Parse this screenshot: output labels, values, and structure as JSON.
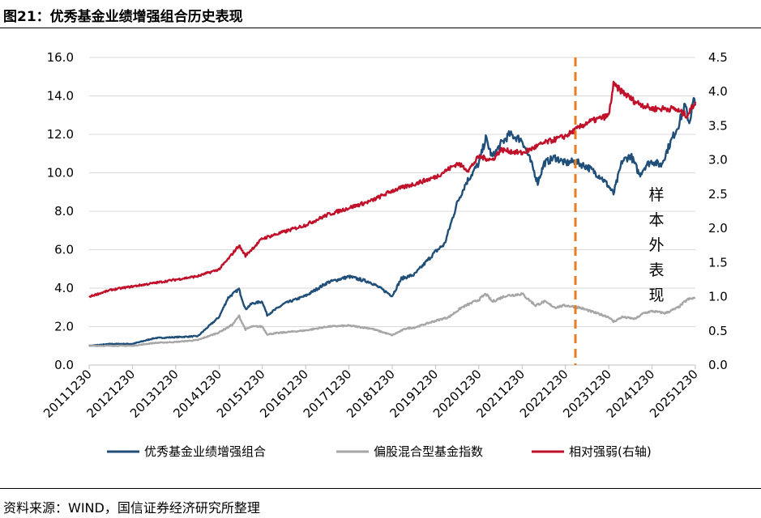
{
  "title": "图21：优秀基金业绩增强组合历史表现",
  "source": "资料来源：WIND，国信证券经济研究所整理",
  "chart_data": {
    "type": "line",
    "x_ticks": [
      "20111230",
      "20121230",
      "20131230",
      "20141230",
      "20151230",
      "20161230",
      "20171230",
      "20181230",
      "20191230",
      "20201230",
      "20211230",
      "20221230",
      "20231230",
      "20241230",
      "20251230"
    ],
    "ylim_left": [
      0,
      16
    ],
    "ylim_right": [
      0,
      4.5
    ],
    "left_ticks": [
      "0.0",
      "2.0",
      "4.0",
      "6.0",
      "8.0",
      "10.0",
      "12.0",
      "14.0",
      "16.0"
    ],
    "right_ticks": [
      "0.0",
      "0.5",
      "1.0",
      "1.5",
      "2.0",
      "2.5",
      "3.0",
      "3.5",
      "4.0",
      "4.5"
    ],
    "grid": "horizontal",
    "legend_position": "bottom",
    "divider_x": "2023-03",
    "annotation": "样本外表现",
    "series": [
      {
        "name": "优秀基金业绩增强组合",
        "axis": "left",
        "color": "#1f4e79",
        "points": [
          [
            2011.99,
            1.0
          ],
          [
            2012.5,
            1.1
          ],
          [
            2012.99,
            1.1
          ],
          [
            2013.5,
            1.4
          ],
          [
            2013.99,
            1.45
          ],
          [
            2014.5,
            1.5
          ],
          [
            2014.99,
            2.5
          ],
          [
            2015.2,
            3.5
          ],
          [
            2015.45,
            3.95
          ],
          [
            2015.6,
            2.9
          ],
          [
            2015.75,
            3.2
          ],
          [
            2015.99,
            3.3
          ],
          [
            2016.1,
            2.6
          ],
          [
            2016.5,
            3.2
          ],
          [
            2016.99,
            3.6
          ],
          [
            2017.5,
            4.3
          ],
          [
            2017.99,
            4.6
          ],
          [
            2018.5,
            4.3
          ],
          [
            2018.99,
            3.6
          ],
          [
            2019.2,
            4.5
          ],
          [
            2019.5,
            4.7
          ],
          [
            2019.99,
            5.9
          ],
          [
            2020.2,
            6.3
          ],
          [
            2020.5,
            8.5
          ],
          [
            2020.7,
            9.5
          ],
          [
            2020.99,
            10.5
          ],
          [
            2021.15,
            11.8
          ],
          [
            2021.3,
            10.8
          ],
          [
            2021.5,
            11.5
          ],
          [
            2021.7,
            12.0
          ],
          [
            2021.99,
            11.7
          ],
          [
            2022.2,
            10.5
          ],
          [
            2022.35,
            9.5
          ],
          [
            2022.5,
            10.5
          ],
          [
            2022.75,
            10.8
          ],
          [
            2022.99,
            10.5
          ],
          [
            2023.2,
            10.6
          ],
          [
            2023.5,
            10.3
          ],
          [
            2023.8,
            9.8
          ],
          [
            2023.99,
            9.3
          ],
          [
            2024.1,
            8.9
          ],
          [
            2024.3,
            10.6
          ],
          [
            2024.5,
            10.9
          ],
          [
            2024.7,
            9.9
          ],
          [
            2024.85,
            10.4
          ],
          [
            2024.99,
            10.6
          ],
          [
            2025.2,
            10.4
          ],
          [
            2025.4,
            11.5
          ],
          [
            2025.6,
            12.5
          ],
          [
            2025.75,
            13.5
          ],
          [
            2025.85,
            12.6
          ],
          [
            2025.95,
            13.8
          ],
          [
            2025.99,
            13.5
          ]
        ]
      },
      {
        "name": "偏股混合型基金指数",
        "axis": "left",
        "color": "#a6a6a6",
        "points": [
          [
            2011.99,
            1.0
          ],
          [
            2012.5,
            1.0
          ],
          [
            2012.99,
            1.0
          ],
          [
            2013.5,
            1.15
          ],
          [
            2013.99,
            1.2
          ],
          [
            2014.5,
            1.3
          ],
          [
            2014.99,
            1.7
          ],
          [
            2015.3,
            2.1
          ],
          [
            2015.45,
            2.55
          ],
          [
            2015.6,
            1.85
          ],
          [
            2015.75,
            2.0
          ],
          [
            2015.99,
            2.0
          ],
          [
            2016.1,
            1.6
          ],
          [
            2016.5,
            1.7
          ],
          [
            2016.99,
            1.8
          ],
          [
            2017.5,
            2.0
          ],
          [
            2017.99,
            2.05
          ],
          [
            2018.5,
            1.9
          ],
          [
            2018.99,
            1.55
          ],
          [
            2019.3,
            1.9
          ],
          [
            2019.5,
            1.95
          ],
          [
            2019.99,
            2.3
          ],
          [
            2020.3,
            2.5
          ],
          [
            2020.6,
            3.0
          ],
          [
            2020.99,
            3.4
          ],
          [
            2021.15,
            3.7
          ],
          [
            2021.3,
            3.3
          ],
          [
            2021.6,
            3.6
          ],
          [
            2021.99,
            3.7
          ],
          [
            2022.3,
            3.1
          ],
          [
            2022.5,
            3.3
          ],
          [
            2022.75,
            3.0
          ],
          [
            2022.99,
            3.1
          ],
          [
            2023.3,
            3.0
          ],
          [
            2023.7,
            2.7
          ],
          [
            2023.99,
            2.5
          ],
          [
            2024.1,
            2.25
          ],
          [
            2024.3,
            2.5
          ],
          [
            2024.6,
            2.4
          ],
          [
            2024.8,
            2.7
          ],
          [
            2024.99,
            2.8
          ],
          [
            2025.3,
            2.7
          ],
          [
            2025.6,
            3.0
          ],
          [
            2025.8,
            3.4
          ],
          [
            2025.99,
            3.5
          ]
        ]
      },
      {
        "name": "相对强弱(右轴)",
        "axis": "right",
        "color": "#c0102a",
        "points": [
          [
            2011.99,
            1.0
          ],
          [
            2012.5,
            1.1
          ],
          [
            2012.99,
            1.15
          ],
          [
            2013.5,
            1.2
          ],
          [
            2013.99,
            1.25
          ],
          [
            2014.5,
            1.3
          ],
          [
            2014.99,
            1.4
          ],
          [
            2015.2,
            1.55
          ],
          [
            2015.45,
            1.75
          ],
          [
            2015.6,
            1.6
          ],
          [
            2015.99,
            1.85
          ],
          [
            2016.5,
            1.95
          ],
          [
            2016.99,
            2.05
          ],
          [
            2017.5,
            2.2
          ],
          [
            2017.99,
            2.3
          ],
          [
            2018.5,
            2.4
          ],
          [
            2018.99,
            2.55
          ],
          [
            2019.5,
            2.65
          ],
          [
            2019.99,
            2.75
          ],
          [
            2020.5,
            2.95
          ],
          [
            2020.75,
            2.85
          ],
          [
            2020.99,
            3.05
          ],
          [
            2021.3,
            3.0
          ],
          [
            2021.5,
            3.15
          ],
          [
            2021.99,
            3.1
          ],
          [
            2022.5,
            3.25
          ],
          [
            2022.99,
            3.35
          ],
          [
            2023.5,
            3.55
          ],
          [
            2023.99,
            3.65
          ],
          [
            2024.1,
            4.1
          ],
          [
            2024.3,
            4.0
          ],
          [
            2024.6,
            3.85
          ],
          [
            2024.99,
            3.75
          ],
          [
            2025.5,
            3.75
          ],
          [
            2025.8,
            3.65
          ],
          [
            2025.99,
            3.85
          ]
        ]
      }
    ]
  }
}
